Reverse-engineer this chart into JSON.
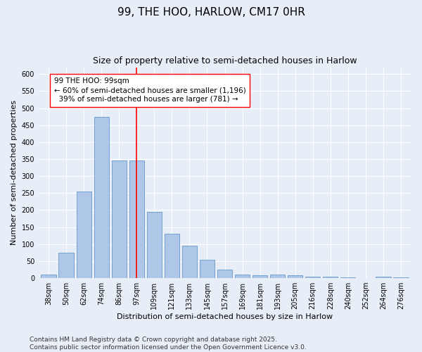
{
  "title": "99, THE HOO, HARLOW, CM17 0HR",
  "subtitle": "Size of property relative to semi-detached houses in Harlow",
  "xlabel": "Distribution of semi-detached houses by size in Harlow",
  "ylabel": "Number of semi-detached properties",
  "categories": [
    "38sqm",
    "50sqm",
    "62sqm",
    "74sqm",
    "86sqm",
    "97sqm",
    "109sqm",
    "121sqm",
    "133sqm",
    "145sqm",
    "157sqm",
    "169sqm",
    "181sqm",
    "193sqm",
    "205sqm",
    "216sqm",
    "228sqm",
    "240sqm",
    "252sqm",
    "264sqm",
    "276sqm"
  ],
  "values": [
    10,
    75,
    255,
    475,
    345,
    345,
    195,
    130,
    95,
    55,
    25,
    10,
    8,
    10,
    8,
    5,
    5,
    2,
    1,
    5,
    2
  ],
  "bar_color": "#aec6e8",
  "bar_edge_color": "#6699cc",
  "vline_x_index": 5,
  "vline_color": "red",
  "annotation_line1": "99 THE HOO: 99sqm",
  "annotation_line2": "← 60% of semi-detached houses are smaller (1,196)",
  "annotation_line3": "  39% of semi-detached houses are larger (781) →",
  "annotation_box_color": "white",
  "annotation_box_edge_color": "red",
  "ylim": [
    0,
    620
  ],
  "yticks": [
    0,
    50,
    100,
    150,
    200,
    250,
    300,
    350,
    400,
    450,
    500,
    550,
    600
  ],
  "background_color": "#e8eef7",
  "plot_background_color": "#e8eef7",
  "footer_text": "Contains HM Land Registry data © Crown copyright and database right 2025.\nContains public sector information licensed under the Open Government Licence v3.0.",
  "title_fontsize": 11,
  "subtitle_fontsize": 9,
  "axis_label_fontsize": 8,
  "tick_fontsize": 7,
  "annotation_fontsize": 7.5,
  "footer_fontsize": 6.5
}
